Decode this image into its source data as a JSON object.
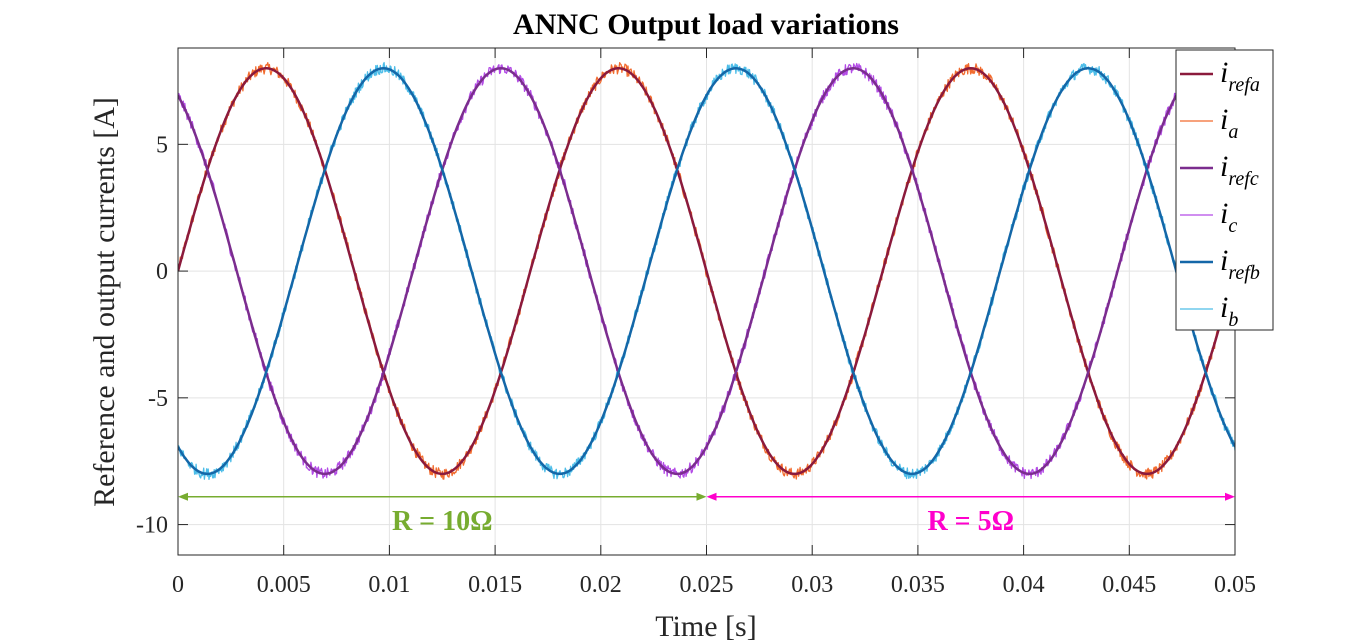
{
  "chart_data": {
    "type": "line",
    "title": "ANNC Output load variations",
    "xlabel": "Time [s]",
    "ylabel": "Reference and output currents [A]",
    "xlim": [
      0,
      0.05
    ],
    "ylim": [
      -11.2,
      8.8
    ],
    "grid": true,
    "xticks": [
      0,
      0.005,
      0.01,
      0.015,
      0.02,
      0.025,
      0.03,
      0.035,
      0.04,
      0.045,
      0.05
    ],
    "xtick_labels": [
      "0",
      "0.005",
      "0.01",
      "0.015",
      "0.02",
      "0.025",
      "0.03",
      "0.035",
      "0.04",
      "0.045",
      "0.05"
    ],
    "yticks": [
      -10,
      -5,
      0,
      5
    ],
    "ytick_labels": [
      "-10",
      "-5",
      "0",
      "5"
    ],
    "legend": {
      "position": "top-right",
      "entries": [
        {
          "main": "i",
          "sub": "refa"
        },
        {
          "main": "i",
          "sub": "a"
        },
        {
          "main": "i",
          "sub": "refc"
        },
        {
          "main": "i",
          "sub": "c"
        },
        {
          "main": "i",
          "sub": "refb"
        },
        {
          "main": "i",
          "sub": "b"
        }
      ]
    },
    "series": [
      {
        "name": "i_refa",
        "kind": "reference",
        "color": "#8b1a3c",
        "amplitude": 8,
        "frequency_hz": 60,
        "phase_deg": 0,
        "width": 2.5
      },
      {
        "name": "i_a",
        "kind": "measured",
        "color": "#f26b2e",
        "amplitude": 8,
        "frequency_hz": 60,
        "phase_deg": 0,
        "width": 1.3
      },
      {
        "name": "i_refc",
        "kind": "reference",
        "color": "#7b2d8e",
        "amplitude": 8,
        "frequency_hz": 60,
        "phase_deg": 120,
        "width": 2.5
      },
      {
        "name": "i_c",
        "kind": "measured",
        "color": "#b34be6",
        "amplitude": 8,
        "frequency_hz": 60,
        "phase_deg": 120,
        "width": 1.3
      },
      {
        "name": "i_refb",
        "kind": "reference",
        "color": "#1467a8",
        "amplitude": 8,
        "frequency_hz": 60,
        "phase_deg": -120,
        "width": 2.5
      },
      {
        "name": "i_b",
        "kind": "measured",
        "color": "#4dbde8",
        "amplitude": 8,
        "frequency_hz": 60,
        "phase_deg": -120,
        "width": 1.3
      }
    ],
    "annotations": [
      {
        "text": "R = 10Ω",
        "color": "#77ac30",
        "x_start": 0,
        "x_end": 0.025,
        "y": -8.9,
        "text_y": -9.9
      },
      {
        "text": "R = 5Ω",
        "color": "#ff00cc",
        "x_start": 0.025,
        "x_end": 0.05,
        "y": -8.9,
        "text_y": -9.9
      }
    ]
  }
}
